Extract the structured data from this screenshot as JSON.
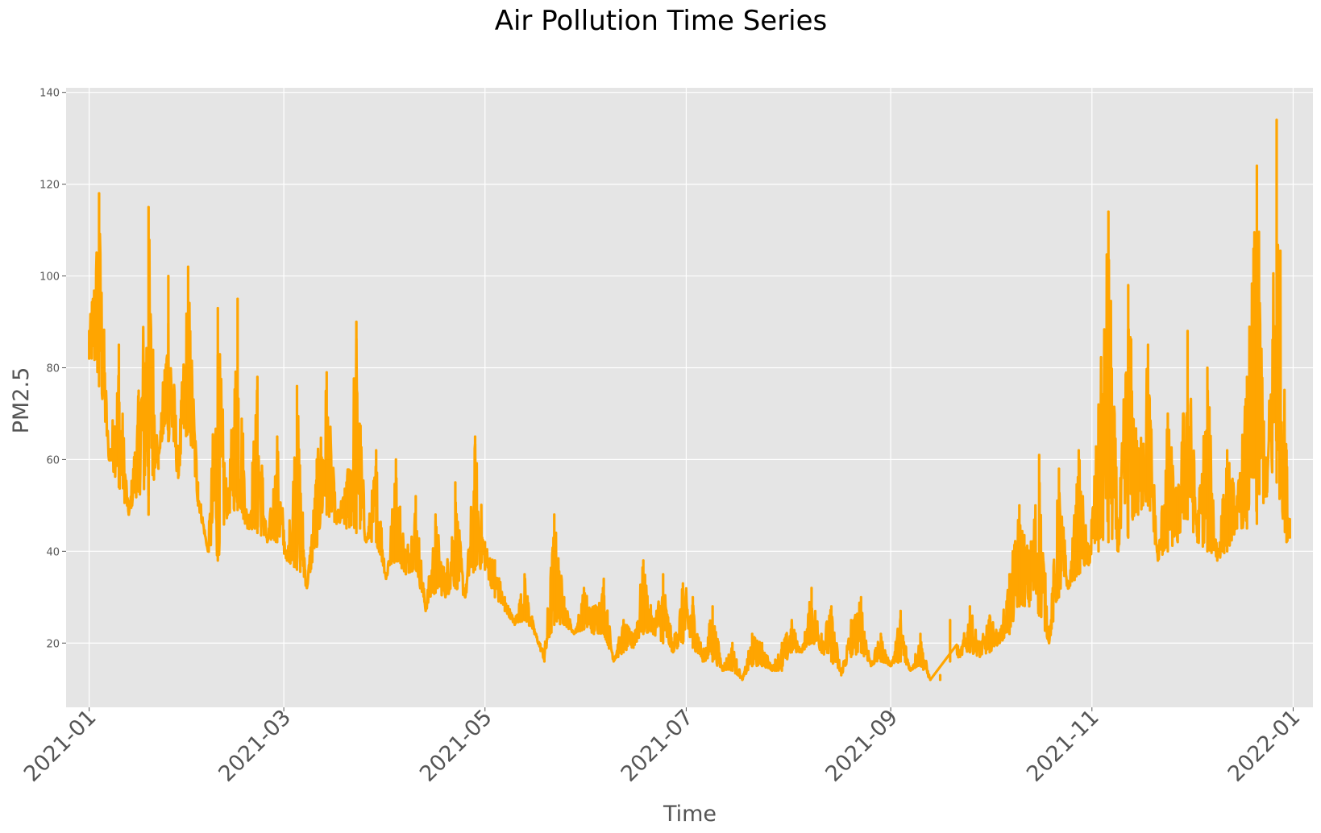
{
  "chart_data": {
    "type": "line",
    "title": "Air Pollution Time Series",
    "xlabel": "Time",
    "ylabel": "PM2.5",
    "ylim": [
      6,
      141
    ],
    "xlim": [
      "2020-12-25",
      "2022-01-07"
    ],
    "yticks": [
      20,
      40,
      60,
      80,
      100,
      120,
      140
    ],
    "xticks": [
      "2021-01",
      "2021-03",
      "2021-05",
      "2021-07",
      "2021-09",
      "2021-11",
      "2022-01"
    ],
    "grid": true,
    "line_color": "#FFA500",
    "plot_background": "#E5E5E5",
    "series": [
      {
        "x": [
          "2021-01-01",
          "2021-01-04",
          "2021-01-07",
          "2021-01-10",
          "2021-01-13",
          "2021-01-16",
          "2021-01-19",
          "2021-01-22",
          "2021-01-25",
          "2021-01-28",
          "2021-01-31",
          "2021-02-03",
          "2021-02-06",
          "2021-02-09",
          "2021-02-12",
          "2021-02-15",
          "2021-02-18",
          "2021-02-21",
          "2021-02-24",
          "2021-02-27",
          "2021-03-02",
          "2021-03-05",
          "2021-03-08",
          "2021-03-11",
          "2021-03-14",
          "2021-03-17",
          "2021-03-20",
          "2021-03-23",
          "2021-03-26",
          "2021-03-29",
          "2021-04-01",
          "2021-04-04",
          "2021-04-07",
          "2021-04-10",
          "2021-04-13",
          "2021-04-16",
          "2021-04-19",
          "2021-04-22",
          "2021-04-25",
          "2021-04-28",
          "2021-05-01",
          "2021-05-04",
          "2021-05-07",
          "2021-05-10",
          "2021-05-13",
          "2021-05-16",
          "2021-05-19",
          "2021-05-22",
          "2021-05-25",
          "2021-05-28",
          "2021-05-31",
          "2021-06-03",
          "2021-06-06",
          "2021-06-09",
          "2021-06-12",
          "2021-06-15",
          "2021-06-18",
          "2021-06-21",
          "2021-06-24",
          "2021-06-27",
          "2021-06-30",
          "2021-07-03",
          "2021-07-06",
          "2021-07-09",
          "2021-07-12",
          "2021-07-15",
          "2021-07-18",
          "2021-07-21",
          "2021-07-24",
          "2021-07-27",
          "2021-07-30",
          "2021-08-02",
          "2021-08-05",
          "2021-08-08",
          "2021-08-11",
          "2021-08-14",
          "2021-08-17",
          "2021-08-20",
          "2021-08-23",
          "2021-08-26",
          "2021-08-29",
          "2021-09-01",
          "2021-09-04",
          "2021-09-07",
          "2021-09-10",
          "2021-09-13",
          "2021-09-16",
          "2021-09-19",
          "2021-09-22",
          "2021-09-25",
          "2021-09-28",
          "2021-10-01",
          "2021-10-04",
          "2021-10-07",
          "2021-10-10",
          "2021-10-13",
          "2021-10-16",
          "2021-10-19",
          "2021-10-22",
          "2021-10-25",
          "2021-10-28",
          "2021-10-31",
          "2021-11-03",
          "2021-11-06",
          "2021-11-09",
          "2021-11-12",
          "2021-11-15",
          "2021-11-18",
          "2021-11-21",
          "2021-11-24",
          "2021-11-27",
          "2021-11-30",
          "2021-12-03",
          "2021-12-06",
          "2021-12-09",
          "2021-12-12",
          "2021-12-15",
          "2021-12-18",
          "2021-12-21",
          "2021-12-24",
          "2021-12-27",
          "2021-12-30",
          "2021-12-31"
        ],
        "y": [
          88,
          118,
          60,
          85,
          48,
          75,
          115,
          58,
          100,
          62,
          102,
          55,
          40,
          93,
          50,
          95,
          45,
          78,
          42,
          65,
          38,
          76,
          32,
          60,
          79,
          48,
          55,
          90,
          42,
          62,
          34,
          60,
          40,
          52,
          28,
          48,
          35,
          55,
          30,
          65,
          42,
          38,
          30,
          25,
          35,
          23,
          18,
          48,
          30,
          22,
          32,
          28,
          34,
          17,
          25,
          22,
          38,
          25,
          35,
          20,
          33,
          30,
          18,
          28,
          15,
          20,
          12,
          22,
          20,
          15,
          20,
          25,
          18,
          32,
          22,
          28,
          14,
          25,
          30,
          16,
          22,
          15,
          27,
          14,
          22,
          12,
          13,
          25,
          18,
          28,
          20,
          26,
          22,
          35,
          50,
          40,
          61,
          20,
          58,
          32,
          62,
          40,
          72,
          114,
          45,
          98,
          62,
          85,
          38,
          70,
          52,
          88,
          48,
          80,
          40,
          62,
          52,
          78,
          124,
          55,
          134,
          62,
          47
        ],
        "low_envelope": [
          82,
          76,
          60,
          54,
          48,
          53,
          48,
          62,
          64,
          56,
          66,
          50,
          40,
          38,
          48,
          49,
          45,
          44,
          42,
          42,
          38,
          36,
          32,
          41,
          48,
          46,
          45,
          44,
          42,
          42,
          34,
          38,
          35,
          36,
          27,
          31,
          30,
          32,
          30,
          36,
          36,
          30,
          27,
          24,
          25,
          22,
          16,
          24,
          24,
          22,
          23,
          22,
          22,
          16,
          18,
          19,
          22,
          22,
          20,
          18,
          20,
          19,
          16,
          16,
          14,
          14,
          12,
          15,
          15,
          14,
          14,
          18,
          18,
          20,
          18,
          16,
          13,
          17,
          18,
          15,
          16,
          15,
          16,
          14,
          15,
          12,
          12,
          16,
          17,
          18,
          17,
          18,
          20,
          22,
          28,
          28,
          26,
          20,
          30,
          32,
          35,
          37,
          40,
          42,
          40,
          43,
          48,
          50,
          38,
          40,
          42,
          47,
          42,
          40,
          38,
          40,
          45,
          45,
          46,
          52,
          55,
          42,
          43
        ]
      }
    ]
  }
}
